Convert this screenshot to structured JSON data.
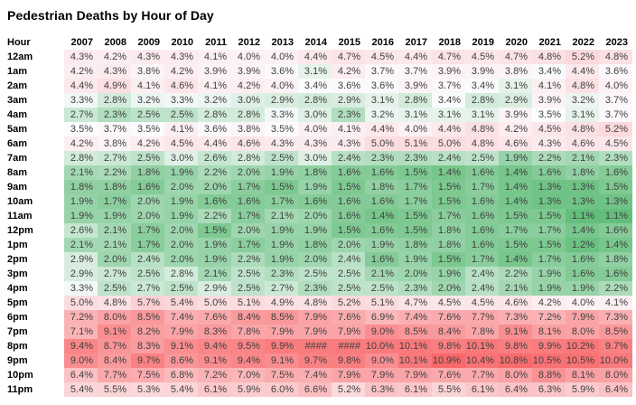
{
  "title": "Pedestrian Deaths by Hour of Day",
  "colors": {
    "scale_min_color": "#63BE7B",
    "scale_mid_color": "#FCFCFF",
    "scale_max_color": "#F8696B",
    "value_text": "#3f3f3f",
    "header_text": "#000000",
    "background": "#ffffff"
  },
  "chart_data": {
    "type": "heatmap",
    "title": "Pedestrian Deaths by Hour of Day",
    "row_label_header": "Hour",
    "columns": [
      "2007",
      "2008",
      "2009",
      "2010",
      "2011",
      "2012",
      "2013",
      "2014",
      "2015",
      "2016",
      "2017",
      "2018",
      "2019",
      "2020",
      "2021",
      "2022",
      "2023"
    ],
    "row_labels": [
      "12am",
      "1am",
      "2am",
      "3am",
      "4am",
      "5am",
      "6am",
      "7am",
      "8am",
      "9am",
      "10am",
      "11am",
      "12pm",
      "1pm",
      "2pm",
      "3pm",
      "4pm",
      "5pm",
      "6pm",
      "7pm",
      "8pm",
      "9pm",
      "10pm",
      "11pm"
    ],
    "value_format": "percent_1dp",
    "overflow_marker": "####",
    "legend": "none",
    "color_scale_midpoint": "median",
    "values": [
      [
        4.3,
        4.2,
        4.3,
        4.3,
        4.1,
        4.0,
        4.0,
        4.4,
        4.7,
        4.5,
        4.4,
        4.7,
        4.5,
        4.7,
        4.8,
        5.2,
        4.8
      ],
      [
        4.2,
        4.3,
        3.8,
        4.2,
        3.9,
        3.9,
        3.6,
        3.1,
        4.2,
        3.7,
        3.7,
        3.9,
        3.9,
        3.8,
        3.4,
        4.4,
        3.6
      ],
      [
        4.4,
        4.9,
        4.1,
        4.6,
        4.1,
        4.2,
        4.0,
        3.4,
        3.6,
        3.6,
        3.9,
        3.7,
        3.4,
        3.1,
        4.1,
        4.8,
        4.0
      ],
      [
        3.3,
        2.8,
        3.2,
        3.3,
        3.2,
        3.0,
        2.9,
        2.8,
        2.9,
        3.1,
        2.8,
        3.4,
        2.8,
        2.9,
        3.9,
        3.2,
        3.7
      ],
      [
        2.7,
        2.3,
        2.5,
        2.5,
        2.8,
        2.8,
        3.3,
        3.0,
        2.3,
        3.2,
        3.1,
        3.1,
        3.1,
        3.9,
        3.5,
        3.1,
        3.7
      ],
      [
        3.5,
        3.7,
        3.5,
        4.1,
        3.6,
        3.8,
        3.5,
        4.0,
        4.1,
        4.4,
        4.0,
        4.4,
        4.8,
        4.2,
        4.5,
        4.8,
        5.2
      ],
      [
        4.2,
        3.8,
        4.2,
        4.5,
        4.4,
        4.6,
        4.3,
        4.3,
        4.3,
        5.0,
        5.1,
        5.0,
        4.8,
        4.6,
        4.3,
        4.6,
        4.5
      ],
      [
        2.8,
        2.7,
        2.5,
        3.0,
        2.6,
        2.8,
        2.5,
        3.0,
        2.4,
        2.3,
        2.3,
        2.4,
        2.5,
        1.9,
        2.2,
        2.1,
        2.3
      ],
      [
        2.1,
        2.2,
        1.8,
        1.9,
        2.2,
        2.0,
        1.9,
        1.8,
        1.6,
        1.6,
        1.5,
        1.4,
        1.6,
        1.4,
        1.6,
        1.8,
        1.6
      ],
      [
        1.8,
        1.8,
        1.6,
        2.0,
        2.0,
        1.7,
        1.5,
        1.9,
        1.5,
        1.8,
        1.7,
        1.5,
        1.7,
        1.4,
        1.3,
        1.3,
        1.5
      ],
      [
        1.9,
        1.7,
        2.0,
        1.9,
        1.6,
        1.6,
        1.7,
        1.6,
        1.6,
        1.6,
        1.7,
        1.5,
        1.6,
        1.4,
        1.3,
        1.3,
        1.3
      ],
      [
        1.9,
        1.9,
        2.0,
        1.9,
        2.2,
        1.7,
        2.1,
        2.0,
        1.6,
        1.4,
        1.5,
        1.7,
        1.6,
        1.5,
        1.5,
        1.1,
        1.1
      ],
      [
        2.6,
        2.1,
        1.7,
        2.0,
        1.5,
        2.0,
        1.9,
        1.9,
        1.5,
        1.6,
        1.5,
        1.8,
        1.6,
        1.7,
        1.7,
        1.4,
        1.6
      ],
      [
        2.1,
        2.1,
        1.7,
        2.0,
        1.9,
        1.7,
        1.9,
        1.8,
        2.0,
        1.9,
        1.8,
        1.8,
        1.6,
        1.5,
        1.5,
        1.2,
        1.4
      ],
      [
        2.9,
        2.0,
        2.4,
        2.0,
        1.9,
        2.2,
        1.9,
        2.0,
        2.4,
        1.6,
        1.9,
        1.5,
        1.7,
        1.4,
        1.7,
        1.6,
        1.8
      ],
      [
        2.9,
        2.7,
        2.5,
        2.8,
        2.1,
        2.5,
        2.3,
        2.5,
        2.5,
        2.1,
        2.0,
        1.9,
        2.4,
        2.2,
        1.9,
        1.6,
        1.6
      ],
      [
        3.3,
        2.5,
        2.7,
        2.5,
        2.9,
        2.5,
        2.7,
        2.3,
        2.5,
        2.5,
        2.3,
        2.0,
        2.4,
        2.1,
        1.9,
        1.9,
        2.2
      ],
      [
        5.0,
        4.8,
        5.7,
        5.4,
        5.0,
        5.1,
        4.9,
        4.8,
        5.2,
        5.1,
        4.7,
        4.5,
        4.5,
        4.6,
        4.2,
        4.0,
        4.1
      ],
      [
        7.2,
        8.0,
        8.5,
        7.4,
        7.6,
        8.4,
        8.5,
        7.9,
        7.6,
        6.9,
        7.4,
        7.6,
        7.7,
        7.3,
        7.2,
        7.9,
        7.3
      ],
      [
        7.1,
        9.1,
        8.2,
        7.9,
        8.3,
        7.8,
        7.9,
        7.9,
        7.9,
        9.0,
        8.5,
        8.4,
        7.8,
        9.1,
        8.1,
        8.0,
        8.5
      ],
      [
        9.4,
        8.7,
        8.3,
        9.1,
        9.4,
        9.5,
        9.9,
        "####",
        "####",
        10.0,
        10.1,
        9.8,
        10.1,
        9.8,
        9.9,
        10.2,
        9.7
      ],
      [
        9.0,
        8.4,
        9.7,
        8.6,
        9.1,
        9.4,
        9.1,
        9.7,
        9.8,
        9.0,
        10.1,
        10.9,
        10.4,
        10.8,
        10.5,
        10.5,
        10.0
      ],
      [
        6.4,
        7.7,
        7.5,
        6.8,
        7.2,
        7.0,
        7.5,
        7.4,
        7.9,
        7.9,
        7.9,
        7.6,
        7.7,
        8.0,
        8.8,
        8.1,
        8.0
      ],
      [
        5.4,
        5.5,
        5.3,
        5.4,
        6.1,
        5.9,
        6.0,
        6.6,
        5.2,
        6.3,
        6.1,
        5.5,
        6.1,
        6.4,
        6.3,
        5.9,
        6.4
      ]
    ]
  }
}
